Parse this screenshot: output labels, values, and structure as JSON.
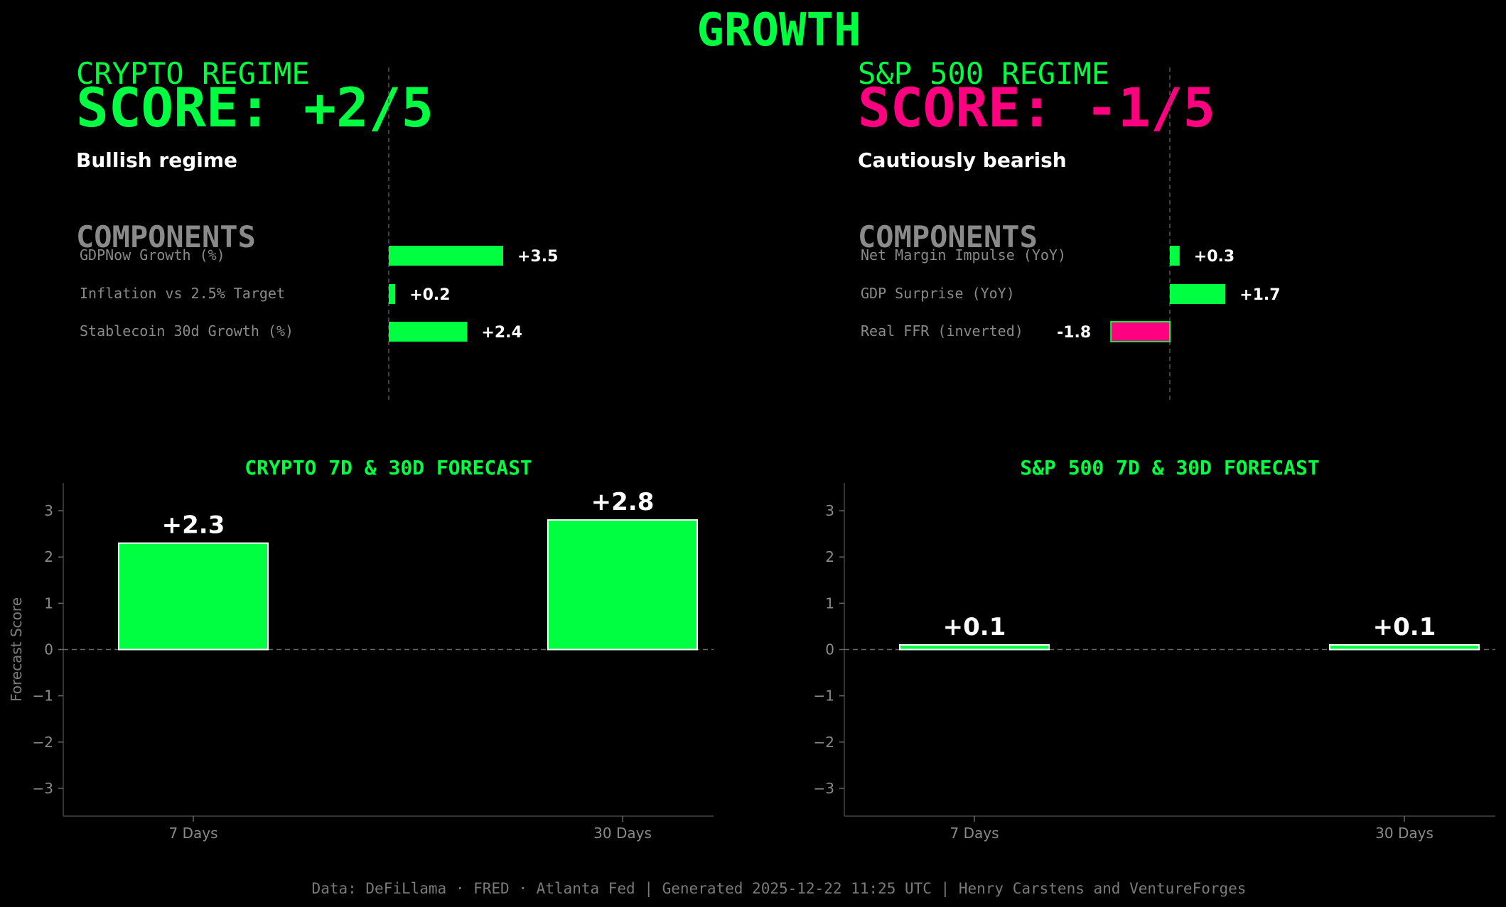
{
  "page": {
    "title": "GROWTH",
    "footer": "Data: DeFiLlama · FRED · Atlanta Fed | Generated 2025-12-22 11:25 UTC | Henry Carstens and VentureForges"
  },
  "colors": {
    "background": "#000000",
    "positive": "#00ff41",
    "negative": "#ff0080",
    "muted": "#8a8a8a",
    "text": "#ffffff"
  },
  "regimes": [
    {
      "title": "CRYPTO REGIME",
      "score": "SCORE: +2/5",
      "score_color": "#00ff41",
      "description": "Bullish regime",
      "components_heading": "COMPONENTS"
    },
    {
      "title": "S&P 500 REGIME",
      "score": "SCORE: -1/5",
      "score_color": "#ff0080",
      "description": "Cautiously bearish",
      "components_heading": "COMPONENTS"
    }
  ],
  "chart_data": [
    {
      "type": "bar",
      "orientation": "horizontal",
      "panel": "crypto-components",
      "categories": [
        "GDPNow Growth (%)",
        "Inflation vs 2.5% Target",
        "Stablecoin 30d Growth (%)"
      ],
      "values": [
        3.5,
        0.2,
        2.4
      ],
      "labels": [
        "+3.5",
        "+0.2",
        "+2.4"
      ],
      "zero_line": "dashed"
    },
    {
      "type": "bar",
      "orientation": "horizontal",
      "panel": "sp500-components",
      "categories": [
        "Net Margin Impulse (YoY)",
        "GDP Surprise (YoY)",
        "Real FFR (inverted)"
      ],
      "values": [
        0.3,
        1.7,
        -1.8
      ],
      "labels": [
        "+0.3",
        "+1.7",
        "-1.8"
      ],
      "zero_line": "dashed"
    },
    {
      "type": "bar",
      "panel": "crypto-forecast",
      "title": "CRYPTO 7D & 30D FORECAST",
      "categories": [
        "7 Days",
        "30 Days"
      ],
      "values": [
        2.3,
        2.8
      ],
      "labels": [
        "+2.3",
        "+2.8"
      ],
      "ylabel": "Forecast Score",
      "ylim": [
        -3.6,
        3.6
      ],
      "yticks": [
        3,
        2,
        1,
        0,
        -1,
        -2,
        -3
      ],
      "ytick_labels": [
        "3",
        "2",
        "1",
        "0",
        "−1",
        "−2",
        "−3"
      ]
    },
    {
      "type": "bar",
      "panel": "sp500-forecast",
      "title": "S&P 500 7D & 30D FORECAST",
      "categories": [
        "7 Days",
        "30 Days"
      ],
      "values": [
        0.1,
        0.1
      ],
      "labels": [
        "+0.1",
        "+0.1"
      ],
      "ylabel": "Forecast Score",
      "ylim": [
        -3.6,
        3.6
      ],
      "yticks": [
        3,
        2,
        1,
        0,
        -1,
        -2,
        -3
      ],
      "ytick_labels": [
        "3",
        "2",
        "1",
        "0",
        "−1",
        "−2",
        "−3"
      ]
    }
  ]
}
